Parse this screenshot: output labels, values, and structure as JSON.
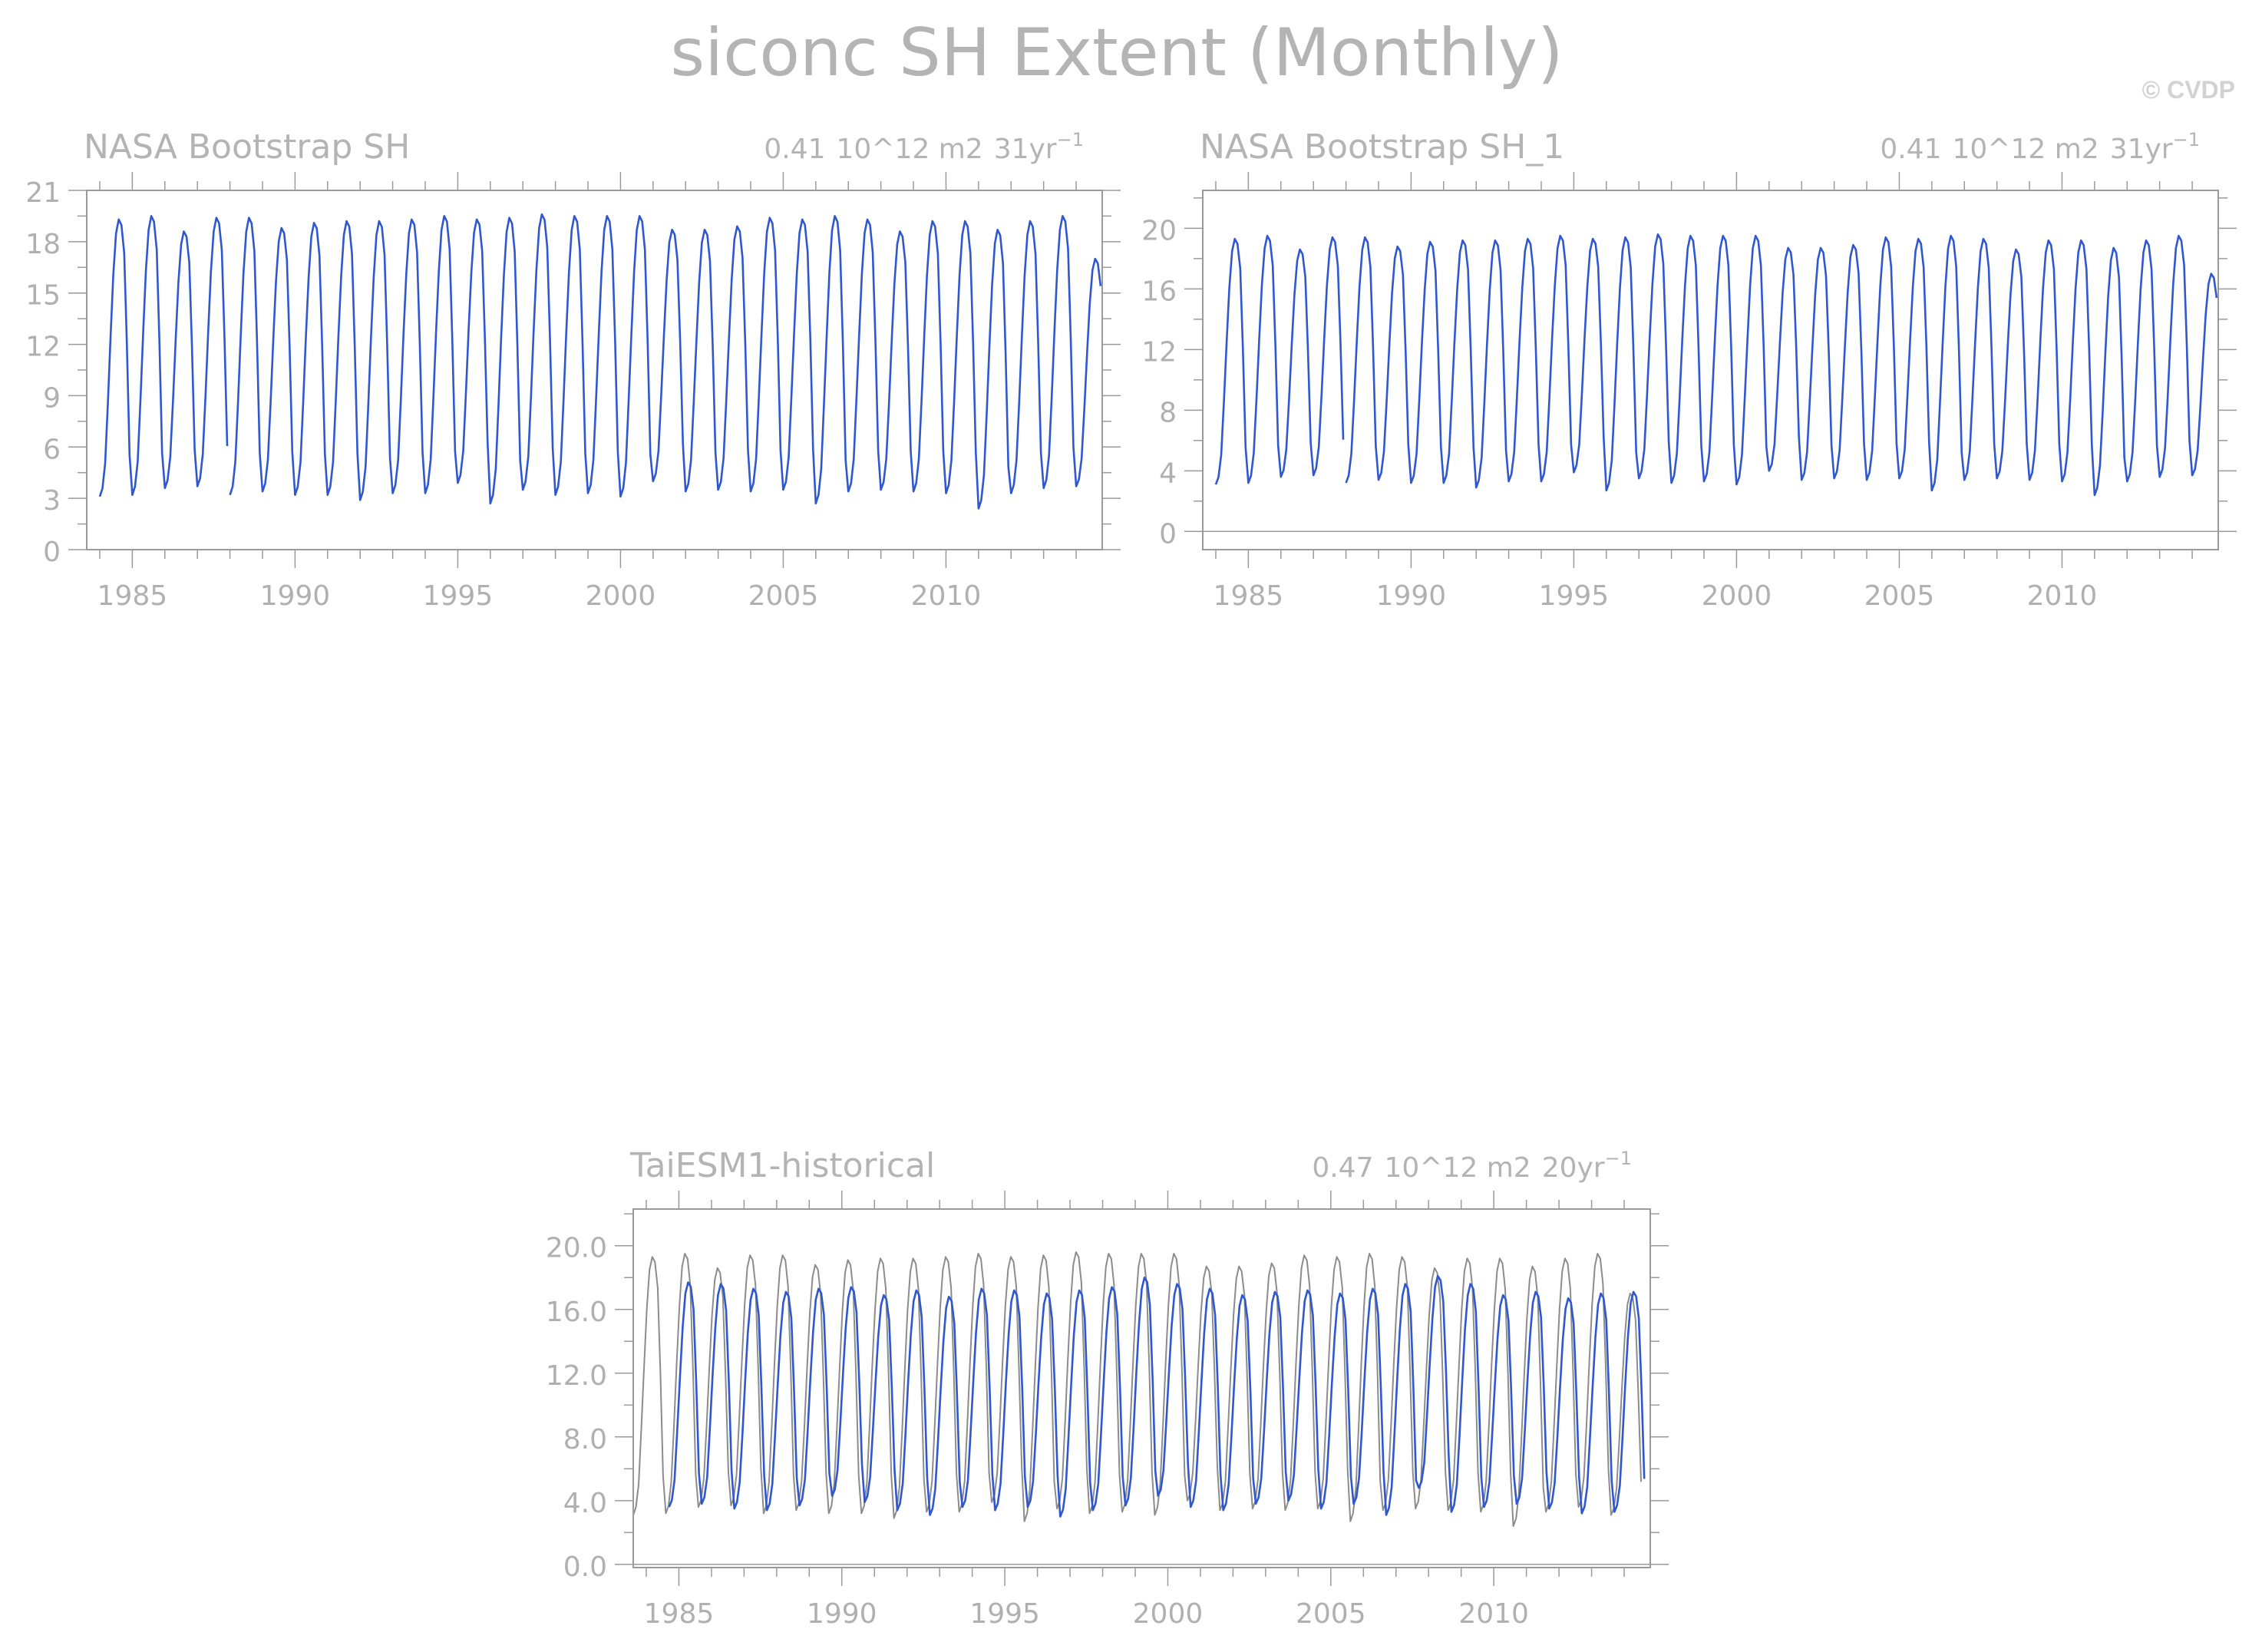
{
  "figure": {
    "title": "siconc SH Extent (Monthly)",
    "credit": "© CVDP"
  },
  "colors": {
    "series": "#2f57d0",
    "reference": "#8c8c8c",
    "frame": "#9a9a9a",
    "text": "#b0b0b0"
  },
  "chart_data": [
    {
      "type": "line",
      "title": "NASA Bootstrap SH",
      "annotation": {
        "value": "0.41",
        "units": "10^12 m2",
        "period": "31yr",
        "superscript": "−1"
      },
      "xlim": [
        1983.6,
        2014.8
      ],
      "ylim": [
        0,
        21
      ],
      "xticks": [
        1985,
        1990,
        1995,
        2000,
        2005,
        2010
      ],
      "yticks": [
        0,
        3,
        6,
        9,
        12,
        15,
        18,
        21
      ],
      "ytick_labels": [
        "0",
        "3",
        "6",
        "9",
        "12",
        "15",
        "18",
        "21"
      ],
      "series": [
        {
          "role": "observed",
          "start": 1984.0,
          "step": 0.083333,
          "gap": [
            1987.92,
            1988.0
          ],
          "annual_minimum": [
            3.1,
            3.2,
            3.6,
            3.7,
            3.2,
            3.4,
            3.2,
            3.2,
            2.9,
            3.3,
            3.3,
            3.9,
            2.7,
            3.5,
            3.2,
            3.3,
            3.1,
            4.0,
            3.4,
            3.5,
            3.4,
            3.5,
            2.7,
            3.4,
            3.5,
            3.4,
            3.3,
            2.4,
            3.3,
            3.6,
            3.7
          ],
          "annual_maximum": [
            19.3,
            19.5,
            18.6,
            19.4,
            19.4,
            18.8,
            19.1,
            19.2,
            19.2,
            19.3,
            19.5,
            19.3,
            19.4,
            19.6,
            19.5,
            19.5,
            19.5,
            18.7,
            18.7,
            18.9,
            19.4,
            19.3,
            19.5,
            19.3,
            18.6,
            19.2,
            19.2,
            18.7,
            19.2,
            19.5,
            17.0
          ]
        }
      ]
    },
    {
      "type": "line",
      "title": "NASA Bootstrap SH_1",
      "annotation": {
        "value": "0.41",
        "units": "10^12 m2",
        "period": "31yr",
        "superscript": "−1"
      },
      "xlim": [
        1983.6,
        2014.8
      ],
      "ylim": [
        -1.2,
        22.5
      ],
      "xticks": [
        1985,
        1990,
        1995,
        2000,
        2005,
        2010
      ],
      "yticks": [
        0,
        4,
        8,
        12,
        16,
        20
      ],
      "ytick_labels": [
        "0",
        "4",
        "8",
        "12",
        "16",
        "20"
      ],
      "zero_line": true,
      "series": [
        {
          "role": "observed",
          "start": 1984.0,
          "step": 0.083333,
          "gap": [
            1987.92,
            1988.0
          ],
          "annual_minimum": [
            3.1,
            3.2,
            3.6,
            3.7,
            3.2,
            3.4,
            3.2,
            3.2,
            2.9,
            3.3,
            3.3,
            3.9,
            2.7,
            3.5,
            3.2,
            3.3,
            3.1,
            4.0,
            3.4,
            3.5,
            3.4,
            3.5,
            2.7,
            3.4,
            3.5,
            3.4,
            3.3,
            2.4,
            3.3,
            3.6,
            3.7
          ],
          "annual_maximum": [
            19.3,
            19.5,
            18.6,
            19.4,
            19.4,
            18.8,
            19.1,
            19.2,
            19.2,
            19.3,
            19.5,
            19.3,
            19.4,
            19.6,
            19.5,
            19.5,
            19.5,
            18.7,
            18.7,
            18.9,
            19.4,
            19.3,
            19.5,
            19.3,
            18.6,
            19.2,
            19.2,
            18.7,
            19.2,
            19.5,
            17.0
          ]
        }
      ]
    },
    {
      "type": "line",
      "title": "TaiESM1-historical",
      "annotation": {
        "value": "0.47",
        "units": "10^12 m2",
        "period": "20yr",
        "superscript": "−1"
      },
      "xlim": [
        1983.6,
        2014.8
      ],
      "ylim": [
        -0.2,
        22.3
      ],
      "xticks": [
        1985,
        1990,
        1995,
        2000,
        2005,
        2010
      ],
      "yticks": [
        0,
        4,
        8,
        12,
        16,
        20
      ],
      "ytick_labels": [
        "0.0",
        "4.0",
        "8.0",
        "12.0",
        "16.0",
        "20.0"
      ],
      "zero_line": true,
      "series": [
        {
          "role": "observed",
          "start": 1983.6,
          "step": 0.083333,
          "annual_minimum": [
            3.1,
            3.2,
            3.6,
            3.7,
            3.2,
            3.4,
            3.2,
            3.2,
            2.9,
            3.3,
            3.3,
            3.9,
            2.7,
            3.5,
            3.2,
            3.3,
            3.1,
            4.0,
            3.4,
            3.5,
            3.4,
            3.5,
            2.7,
            3.4,
            3.5,
            3.4,
            3.3,
            2.4,
            3.3,
            3.6,
            3.1
          ],
          "annual_maximum": [
            19.3,
            19.5,
            18.6,
            19.4,
            19.4,
            18.8,
            19.1,
            19.2,
            19.2,
            19.3,
            19.5,
            19.3,
            19.4,
            19.6,
            19.5,
            19.5,
            19.5,
            18.7,
            18.7,
            18.9,
            19.4,
            19.3,
            19.5,
            19.3,
            18.6,
            19.2,
            19.2,
            18.7,
            19.2,
            19.5,
            17.0
          ]
        },
        {
          "role": "model",
          "start": 1984.7,
          "step": 0.083333,
          "annual_minimum": [
            3.6,
            3.8,
            3.5,
            3.4,
            3.7,
            4.3,
            3.9,
            3.4,
            3.1,
            3.6,
            3.4,
            3.6,
            3.0,
            3.4,
            3.7,
            4.3,
            3.6,
            3.4,
            3.8,
            4.0,
            3.5,
            3.8,
            3.1,
            4.8,
            3.3,
            3.6,
            3.8,
            3.5,
            3.2,
            3.3
          ],
          "annual_maximum": [
            17.7,
            17.6,
            17.3,
            17.1,
            17.3,
            17.4,
            16.9,
            17.2,
            16.8,
            17.3,
            17.2,
            17.0,
            17.2,
            17.4,
            18.0,
            17.6,
            17.3,
            16.9,
            17.1,
            17.2,
            17.0,
            17.3,
            17.6,
            18.1,
            17.6,
            16.9,
            17.1,
            16.7,
            17.0,
            17.1
          ]
        }
      ]
    }
  ]
}
